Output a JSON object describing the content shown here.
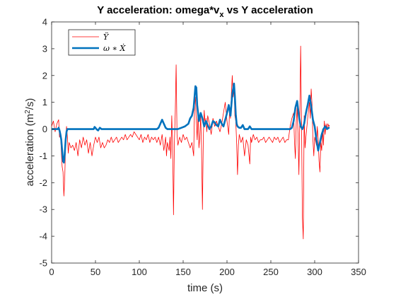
{
  "chart_data": {
    "type": "line",
    "title": "Y acceleration: omega*v_x vs Y acceleration",
    "title_parts": {
      "main": "Y acceleration: omega*v",
      "sub": "x",
      "rest": " vs Y acceleration"
    },
    "xlabel": "time (s)",
    "ylabel_parts": {
      "main": "acceleration (m",
      "sup": "2",
      "rest": "/s)"
    },
    "xlim": [
      0,
      350
    ],
    "ylim": [
      -5,
      4
    ],
    "xticks": [
      0,
      50,
      100,
      150,
      200,
      250,
      300,
      350
    ],
    "yticks": [
      -5,
      -4,
      -3,
      -2,
      -1,
      0,
      1,
      2,
      3,
      4
    ],
    "grid": false,
    "legend_position": "top-left",
    "series": [
      {
        "name": "Ÿ",
        "color": "#ff0000",
        "linewidth": "thin",
        "points": [
          [
            0,
            0.1
          ],
          [
            2,
            0.3
          ],
          [
            4,
            -0.1
          ],
          [
            6,
            0.2
          ],
          [
            8,
            0.35
          ],
          [
            9,
            -0.3
          ],
          [
            10,
            -0.1
          ],
          [
            11,
            -0.8
          ],
          [
            12,
            -1.4
          ],
          [
            13,
            -1.6
          ],
          [
            14,
            -2.5
          ],
          [
            15,
            -1.8
          ],
          [
            16,
            -0.4
          ],
          [
            17,
            0.1
          ],
          [
            18,
            -0.3
          ],
          [
            19,
            -0.9
          ],
          [
            20,
            -0.5
          ],
          [
            22,
            -0.7
          ],
          [
            24,
            -0.6
          ],
          [
            26,
            -0.8
          ],
          [
            28,
            -0.5
          ],
          [
            30,
            -1.0
          ],
          [
            32,
            -0.4
          ],
          [
            34,
            -0.7
          ],
          [
            36,
            -0.3
          ],
          [
            38,
            -0.6
          ],
          [
            40,
            -0.4
          ],
          [
            42,
            -0.9
          ],
          [
            44,
            -0.5
          ],
          [
            46,
            -1.0
          ],
          [
            48,
            -0.6
          ],
          [
            50,
            -0.3
          ],
          [
            52,
            -0.5
          ],
          [
            54,
            -0.3
          ],
          [
            56,
            -0.7
          ],
          [
            58,
            -0.5
          ],
          [
            60,
            -0.7
          ],
          [
            62,
            -0.6
          ],
          [
            64,
            -0.4
          ],
          [
            66,
            -0.5
          ],
          [
            68,
            -0.3
          ],
          [
            70,
            -0.5
          ],
          [
            72,
            -0.4
          ],
          [
            74,
            -0.3
          ],
          [
            76,
            -0.5
          ],
          [
            78,
            -0.4
          ],
          [
            80,
            -0.3
          ],
          [
            82,
            -0.4
          ],
          [
            84,
            -0.2
          ],
          [
            86,
            -0.4
          ],
          [
            88,
            -0.3
          ],
          [
            90,
            -0.2
          ],
          [
            92,
            -0.3
          ],
          [
            94,
            -0.1
          ],
          [
            96,
            -0.2
          ],
          [
            98,
            -0.3
          ],
          [
            100,
            -0.4
          ],
          [
            102,
            -0.2
          ],
          [
            104,
            -0.5
          ],
          [
            106,
            -0.3
          ],
          [
            108,
            -0.4
          ],
          [
            110,
            -0.2
          ],
          [
            112,
            -0.5
          ],
          [
            114,
            -0.3
          ],
          [
            116,
            -0.4
          ],
          [
            118,
            -0.3
          ],
          [
            120,
            -0.5
          ],
          [
            122,
            -0.3
          ],
          [
            124,
            -0.6
          ],
          [
            126,
            -0.2
          ],
          [
            128,
            -0.8
          ],
          [
            130,
            -0.3
          ],
          [
            131,
            -1.0
          ],
          [
            132,
            -0.5
          ],
          [
            134,
            -0.8
          ],
          [
            135,
            -0.3
          ],
          [
            136,
            -1.1
          ],
          [
            137,
            0.5
          ],
          [
            138,
            -0.6
          ],
          [
            139,
            -3.2
          ],
          [
            140,
            -0.5
          ],
          [
            141,
            0.6
          ],
          [
            142,
            2.4
          ],
          [
            143,
            -0.2
          ],
          [
            144,
            -0.6
          ],
          [
            146,
            -0.3
          ],
          [
            148,
            -0.5
          ],
          [
            150,
            -0.2
          ],
          [
            152,
            -0.4
          ],
          [
            154,
            -0.3
          ],
          [
            156,
            -0.5
          ],
          [
            158,
            -0.7
          ],
          [
            160,
            -0.5
          ],
          [
            162,
            -1.0
          ],
          [
            163,
            0.9
          ],
          [
            164,
            1.2
          ],
          [
            165,
            0.3
          ],
          [
            166,
            -0.4
          ],
          [
            167,
            0.8
          ],
          [
            168,
            -0.7
          ],
          [
            169,
            -0.3
          ],
          [
            170,
            0.5
          ],
          [
            171,
            -0.8
          ],
          [
            172,
            -3.0
          ],
          [
            173,
            -0.3
          ],
          [
            174,
            0.7
          ],
          [
            175,
            0.2
          ],
          [
            176,
            0.4
          ],
          [
            177,
            -0.1
          ],
          [
            178,
            0.5
          ],
          [
            180,
            0.2
          ],
          [
            182,
            -0.2
          ],
          [
            184,
            0.4
          ],
          [
            186,
            0.1
          ],
          [
            188,
            0.3
          ],
          [
            190,
            0.1
          ],
          [
            192,
            -0.1
          ],
          [
            194,
            0.2
          ],
          [
            196,
            0.6
          ],
          [
            198,
            1.0
          ],
          [
            200,
            0.3
          ],
          [
            202,
            -0.2
          ],
          [
            203,
            0.8
          ],
          [
            204,
            0.4
          ],
          [
            205,
            1.3
          ],
          [
            206,
            2.0
          ],
          [
            207,
            1.2
          ],
          [
            208,
            1.6
          ],
          [
            209,
            0.5
          ],
          [
            210,
            0.3
          ],
          [
            211,
            -0.5
          ],
          [
            212,
            -1.7
          ],
          [
            213,
            -0.6
          ],
          [
            214,
            -0.2
          ],
          [
            216,
            -0.5
          ],
          [
            218,
            -0.3
          ],
          [
            220,
            -1.0
          ],
          [
            222,
            -0.4
          ],
          [
            224,
            -0.6
          ],
          [
            226,
            -1.3
          ],
          [
            227,
            -0.3
          ],
          [
            228,
            -0.5
          ],
          [
            230,
            -0.2
          ],
          [
            232,
            -0.4
          ],
          [
            234,
            -0.3
          ],
          [
            236,
            -0.5
          ],
          [
            238,
            -0.4
          ],
          [
            240,
            -0.4
          ],
          [
            242,
            -0.3
          ],
          [
            244,
            -0.5
          ],
          [
            246,
            -0.4
          ],
          [
            248,
            -0.3
          ],
          [
            250,
            -0.4
          ],
          [
            252,
            -0.5
          ],
          [
            254,
            -0.3
          ],
          [
            256,
            -0.4
          ],
          [
            258,
            -0.3
          ],
          [
            260,
            -0.5
          ],
          [
            262,
            -0.4
          ],
          [
            264,
            -0.3
          ],
          [
            266,
            -0.5
          ],
          [
            268,
            -0.4
          ],
          [
            270,
            -0.4
          ],
          [
            272,
            0.1
          ],
          [
            274,
            0.4
          ],
          [
            276,
            0.6
          ],
          [
            277,
            -0.5
          ],
          [
            278,
            -1.1
          ],
          [
            279,
            0.3
          ],
          [
            280,
            0.8
          ],
          [
            281,
            -0.2
          ],
          [
            282,
            -1.7
          ],
          [
            283,
            0.3
          ],
          [
            284,
            3.1
          ],
          [
            285,
            0.2
          ],
          [
            286,
            -3.3
          ],
          [
            287,
            -4.1
          ],
          [
            288,
            0.5
          ],
          [
            289,
            -0.7
          ],
          [
            290,
            -0.3
          ],
          [
            292,
            0.4
          ],
          [
            294,
            1.0
          ],
          [
            295,
            0.4
          ],
          [
            296,
            1.5
          ],
          [
            297,
            0.9
          ],
          [
            298,
            -0.4
          ],
          [
            299,
            -1.0
          ],
          [
            300,
            -0.3
          ],
          [
            302,
            -0.6
          ],
          [
            303,
            0.1
          ],
          [
            304,
            -0.4
          ],
          [
            305,
            -1.2
          ],
          [
            306,
            -1.6
          ],
          [
            307,
            -0.5
          ],
          [
            308,
            -0.8
          ],
          [
            309,
            0.0
          ],
          [
            310,
            -0.6
          ],
          [
            311,
            0.3
          ],
          [
            312,
            -0.2
          ],
          [
            313,
            0.2
          ],
          [
            314,
            0.0
          ],
          [
            315,
            0.2
          ],
          [
            316,
            0.1
          ],
          [
            317,
            0.15
          ]
        ]
      },
      {
        "name": "ω ∗ Ẋ",
        "color": "#0072bd",
        "linewidth": "thick",
        "points": [
          [
            0,
            0.0
          ],
          [
            4,
            0.0
          ],
          [
            7,
            0.0
          ],
          [
            8,
            0.05
          ],
          [
            9,
            -0.05
          ],
          [
            10,
            -0.2
          ],
          [
            11,
            -0.4
          ],
          [
            12,
            -0.8
          ],
          [
            13,
            -1.2
          ],
          [
            14,
            -1.25
          ],
          [
            15,
            -0.9
          ],
          [
            16,
            -0.4
          ],
          [
            17,
            -0.1
          ],
          [
            18,
            0.0
          ],
          [
            20,
            0.0
          ],
          [
            30,
            0.0
          ],
          [
            40,
            0.0
          ],
          [
            48,
            0.0
          ],
          [
            49,
            0.08
          ],
          [
            50,
            0.05
          ],
          [
            51,
            0.0
          ],
          [
            53,
            -0.05
          ],
          [
            55,
            0.05
          ],
          [
            57,
            0.0
          ],
          [
            60,
            0.0
          ],
          [
            80,
            0.0
          ],
          [
            100,
            0.0
          ],
          [
            120,
            0.0
          ],
          [
            122,
            0.05
          ],
          [
            124,
            0.2
          ],
          [
            126,
            0.35
          ],
          [
            128,
            0.2
          ],
          [
            130,
            0.05
          ],
          [
            132,
            0.0
          ],
          [
            136,
            0.0
          ],
          [
            140,
            0.0
          ],
          [
            144,
            0.0
          ],
          [
            148,
            0.05
          ],
          [
            152,
            0.1
          ],
          [
            156,
            0.2
          ],
          [
            158,
            0.4
          ],
          [
            160,
            0.5
          ],
          [
            162,
            0.8
          ],
          [
            164,
            1.6
          ],
          [
            165,
            1.55
          ],
          [
            166,
            0.9
          ],
          [
            168,
            0.3
          ],
          [
            170,
            0.6
          ],
          [
            172,
            0.4
          ],
          [
            174,
            0.1
          ],
          [
            176,
            0.3
          ],
          [
            178,
            0.15
          ],
          [
            180,
            0.0
          ],
          [
            182,
            0.1
          ],
          [
            184,
            0.3
          ],
          [
            186,
            0.25
          ],
          [
            188,
            0.15
          ],
          [
            190,
            0.1
          ],
          [
            192,
            0.35
          ],
          [
            194,
            0.2
          ],
          [
            196,
            0.1
          ],
          [
            198,
            0.35
          ],
          [
            200,
            0.6
          ],
          [
            202,
            0.9
          ],
          [
            204,
            0.5
          ],
          [
            206,
            1.3
          ],
          [
            208,
            1.7
          ],
          [
            209,
            1.2
          ],
          [
            210,
            0.55
          ],
          [
            211,
            0.2
          ],
          [
            212,
            0.1
          ],
          [
            214,
            0.05
          ],
          [
            216,
            0.05
          ],
          [
            218,
            0.15
          ],
          [
            220,
            0.0
          ],
          [
            224,
            0.0
          ],
          [
            226,
            0.1
          ],
          [
            228,
            0.0
          ],
          [
            230,
            0.0
          ],
          [
            240,
            0.0
          ],
          [
            250,
            0.0
          ],
          [
            260,
            0.0
          ],
          [
            268,
            0.0
          ],
          [
            270,
            0.0
          ],
          [
            272,
            0.0
          ],
          [
            274,
            0.05
          ],
          [
            276,
            0.3
          ],
          [
            278,
            0.8
          ],
          [
            280,
            1.05
          ],
          [
            282,
            0.5
          ],
          [
            284,
            0.1
          ],
          [
            286,
            0.0
          ],
          [
            288,
            0.2
          ],
          [
            290,
            0.6
          ],
          [
            292,
            0.9
          ],
          [
            294,
            1.25
          ],
          [
            296,
            0.85
          ],
          [
            298,
            0.35
          ],
          [
            300,
            0.1
          ],
          [
            302,
            -0.4
          ],
          [
            304,
            -0.8
          ],
          [
            306,
            -0.5
          ],
          [
            308,
            -0.2
          ],
          [
            310,
            0.0
          ],
          [
            312,
            0.1
          ],
          [
            314,
            0.0
          ],
          [
            316,
            0.05
          ],
          [
            317,
            0.05
          ]
        ]
      }
    ]
  }
}
